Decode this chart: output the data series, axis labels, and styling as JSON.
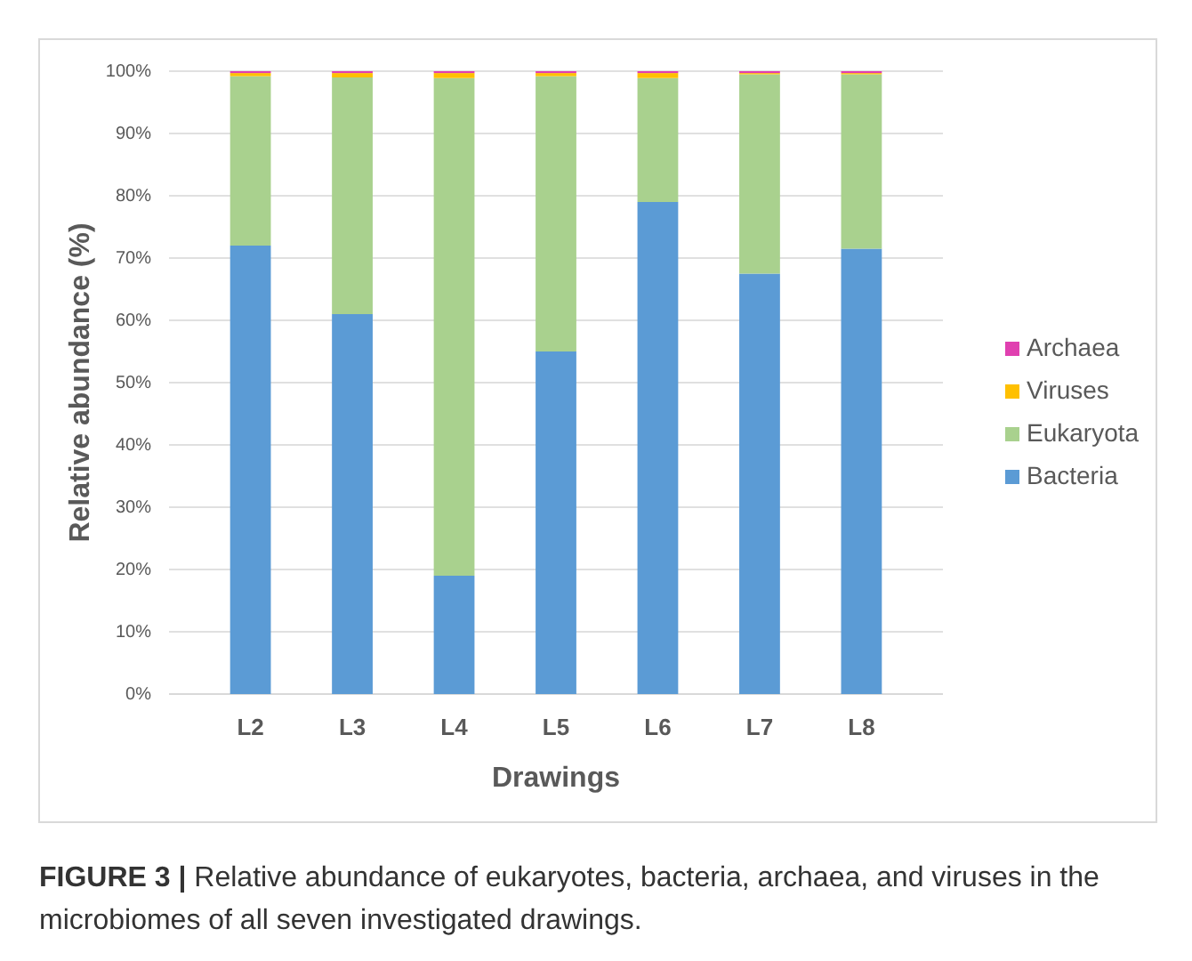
{
  "chart_data": {
    "type": "bar",
    "stacked": true,
    "xlabel": "Drawings",
    "ylabel": "Relative abundance (%)",
    "categories": [
      "L2",
      "L3",
      "L4",
      "L5",
      "L6",
      "L7",
      "L8"
    ],
    "series": [
      {
        "name": "Bacteria",
        "color": "#5b9bd5",
        "values": [
          72,
          61,
          19,
          55,
          79,
          67.5,
          71.5
        ]
      },
      {
        "name": "Eukaryota",
        "color": "#a9d18e",
        "values": [
          27.2,
          38,
          79.9,
          44.2,
          19.9,
          32,
          28
        ]
      },
      {
        "name": "Viruses",
        "color": "#ffc000",
        "values": [
          0.5,
          0.7,
          0.8,
          0.5,
          0.8,
          0.2,
          0.2
        ]
      },
      {
        "name": "Archaea",
        "color": "#e040b0",
        "values": [
          0.3,
          0.3,
          0.3,
          0.3,
          0.3,
          0.3,
          0.3
        ]
      }
    ],
    "ylim": [
      0,
      100
    ],
    "yticks": [
      {
        "value": 0,
        "label": "0%"
      },
      {
        "value": 10,
        "label": "10%"
      },
      {
        "value": 20,
        "label": "20%"
      },
      {
        "value": 30,
        "label": "30%"
      },
      {
        "value": 40,
        "label": "40%"
      },
      {
        "value": 50,
        "label": "50%"
      },
      {
        "value": 60,
        "label": "60%"
      },
      {
        "value": 70,
        "label": "70%"
      },
      {
        "value": 80,
        "label": "80%"
      },
      {
        "value": 90,
        "label": "90%"
      },
      {
        "value": 100,
        "label": "100%"
      }
    ],
    "grid": "y",
    "legend": "right",
    "annotations": [
      "FIGURE 3 | Relative abundance of eukaryotes, bacteria, archaea, and viruses in the microbiomes of all seven investigated drawings."
    ]
  }
}
